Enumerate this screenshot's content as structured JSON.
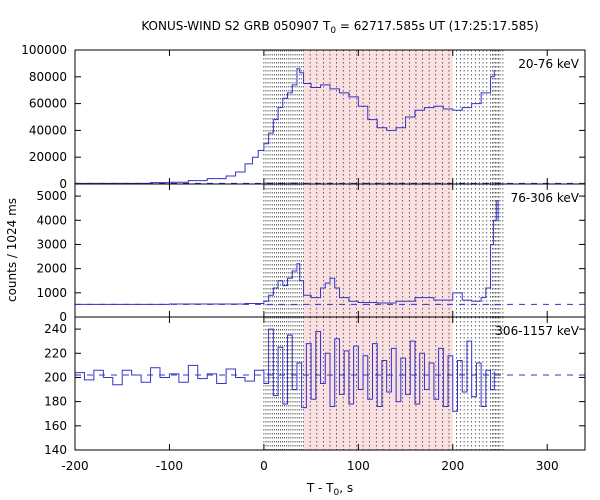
{
  "chart_data": {
    "type": "line",
    "title": "KONUS-WIND S2 GRB 050907 T",
    "title_subscript": "0",
    "title_rest": " = 62717.585s UT (17:25:17.585)",
    "xlabel": "T - T",
    "xlabel_subscript": "0",
    "xlabel_suffix": ", s",
    "ylabel": "counts / 1024 ms",
    "xlim": [
      -200,
      340
    ],
    "xticks": [
      -200,
      -100,
      0,
      100,
      200,
      300
    ],
    "xtick_labels": [
      "-200",
      "-100",
      "0",
      "100",
      "200",
      "300"
    ],
    "shaded_interval": [
      42,
      200
    ],
    "series_color": "#3333cc",
    "background_line_color": "#3333cc",
    "shade_color": "#f8d0d0",
    "panels": [
      {
        "label": "20-76 keV",
        "ylim": [
          0,
          100000
        ],
        "yticks": [
          0,
          20000,
          40000,
          60000,
          80000,
          100000
        ],
        "ytick_labels": [
          "0",
          "20000",
          "40000",
          "60000",
          "80000",
          "100000"
        ],
        "background": 500,
        "points": [
          [
            -200,
            500
          ],
          [
            -150,
            500
          ],
          [
            -120,
            1000
          ],
          [
            -100,
            1300
          ],
          [
            -80,
            2500
          ],
          [
            -60,
            4000
          ],
          [
            -40,
            6000
          ],
          [
            -30,
            9000
          ],
          [
            -20,
            15000
          ],
          [
            -12,
            20000
          ],
          [
            -6,
            25000
          ],
          [
            0,
            30000
          ],
          [
            5,
            38000
          ],
          [
            10,
            48000
          ],
          [
            15,
            57000
          ],
          [
            20,
            64000
          ],
          [
            25,
            68000
          ],
          [
            30,
            74000
          ],
          [
            35,
            86000
          ],
          [
            38,
            83000
          ],
          [
            42,
            75000
          ],
          [
            50,
            72000
          ],
          [
            60,
            74000
          ],
          [
            70,
            71000
          ],
          [
            80,
            68000
          ],
          [
            90,
            65000
          ],
          [
            100,
            58000
          ],
          [
            110,
            48000
          ],
          [
            120,
            42000
          ],
          [
            130,
            40000
          ],
          [
            140,
            42000
          ],
          [
            150,
            50000
          ],
          [
            160,
            55000
          ],
          [
            170,
            57000
          ],
          [
            180,
            58000
          ],
          [
            190,
            56000
          ],
          [
            200,
            55000
          ],
          [
            210,
            57000
          ],
          [
            220,
            60000
          ],
          [
            230,
            68000
          ],
          [
            240,
            80000
          ],
          [
            244,
            85000
          ]
        ]
      },
      {
        "label": "76-306 keV",
        "ylim": [
          0,
          5500
        ],
        "yticks": [
          0,
          1000,
          2000,
          3000,
          4000,
          5000
        ],
        "ytick_labels": [
          "0",
          "1000",
          "2000",
          "3000",
          "4000",
          "5000"
        ],
        "background": 520,
        "points": [
          [
            -200,
            520
          ],
          [
            -100,
            540
          ],
          [
            -20,
            560
          ],
          [
            0,
            650
          ],
          [
            5,
            900
          ],
          [
            10,
            1200
          ],
          [
            15,
            1500
          ],
          [
            20,
            1300
          ],
          [
            25,
            1600
          ],
          [
            30,
            1900
          ],
          [
            35,
            2200
          ],
          [
            38,
            1500
          ],
          [
            42,
            900
          ],
          [
            50,
            800
          ],
          [
            60,
            1200
          ],
          [
            65,
            1400
          ],
          [
            70,
            1600
          ],
          [
            75,
            1200
          ],
          [
            80,
            800
          ],
          [
            90,
            650
          ],
          [
            100,
            600
          ],
          [
            120,
            580
          ],
          [
            140,
            650
          ],
          [
            160,
            800
          ],
          [
            180,
            700
          ],
          [
            200,
            1000
          ],
          [
            210,
            700
          ],
          [
            220,
            650
          ],
          [
            230,
            800
          ],
          [
            235,
            1200
          ],
          [
            240,
            3000
          ],
          [
            243,
            4000
          ],
          [
            246,
            4800
          ],
          [
            248,
            4000
          ]
        ]
      },
      {
        "label": "306-1157 keV",
        "ylim": [
          140,
          250
        ],
        "yticks": [
          140,
          160,
          180,
          200,
          220,
          240
        ],
        "ytick_labels": [
          "140",
          "160",
          "180",
          "200",
          "220",
          "240"
        ],
        "background": 202,
        "points": [
          [
            -200,
            204
          ],
          [
            -190,
            198
          ],
          [
            -180,
            206
          ],
          [
            -170,
            200
          ],
          [
            -160,
            194
          ],
          [
            -150,
            206
          ],
          [
            -140,
            202
          ],
          [
            -130,
            196
          ],
          [
            -120,
            208
          ],
          [
            -110,
            200
          ],
          [
            -100,
            203
          ],
          [
            -90,
            196
          ],
          [
            -80,
            210
          ],
          [
            -70,
            199
          ],
          [
            -60,
            203
          ],
          [
            -50,
            195
          ],
          [
            -40,
            207
          ],
          [
            -30,
            200
          ],
          [
            -20,
            197
          ],
          [
            -10,
            206
          ],
          [
            0,
            195
          ],
          [
            5,
            240
          ],
          [
            10,
            185
          ],
          [
            15,
            225
          ],
          [
            20,
            178
          ],
          [
            25,
            235
          ],
          [
            30,
            190
          ],
          [
            35,
            212
          ],
          [
            40,
            175
          ],
          [
            45,
            228
          ],
          [
            50,
            182
          ],
          [
            55,
            238
          ],
          [
            60,
            195
          ],
          [
            65,
            220
          ],
          [
            70,
            176
          ],
          [
            75,
            232
          ],
          [
            80,
            186
          ],
          [
            85,
            222
          ],
          [
            90,
            178
          ],
          [
            95,
            226
          ],
          [
            100,
            190
          ],
          [
            105,
            218
          ],
          [
            110,
            182
          ],
          [
            115,
            228
          ],
          [
            120,
            176
          ],
          [
            125,
            214
          ],
          [
            130,
            188
          ],
          [
            135,
            224
          ],
          [
            140,
            180
          ],
          [
            145,
            216
          ],
          [
            150,
            186
          ],
          [
            155,
            230
          ],
          [
            160,
            178
          ],
          [
            165,
            220
          ],
          [
            170,
            190
          ],
          [
            175,
            212
          ],
          [
            180,
            182
          ],
          [
            185,
            224
          ],
          [
            190,
            176
          ],
          [
            195,
            218
          ],
          [
            200,
            172
          ],
          [
            205,
            214
          ],
          [
            210,
            188
          ],
          [
            215,
            230
          ],
          [
            220,
            184
          ],
          [
            225,
            212
          ],
          [
            230,
            176
          ],
          [
            235,
            206
          ],
          [
            240,
            190
          ],
          [
            244,
            205
          ]
        ]
      }
    ]
  }
}
